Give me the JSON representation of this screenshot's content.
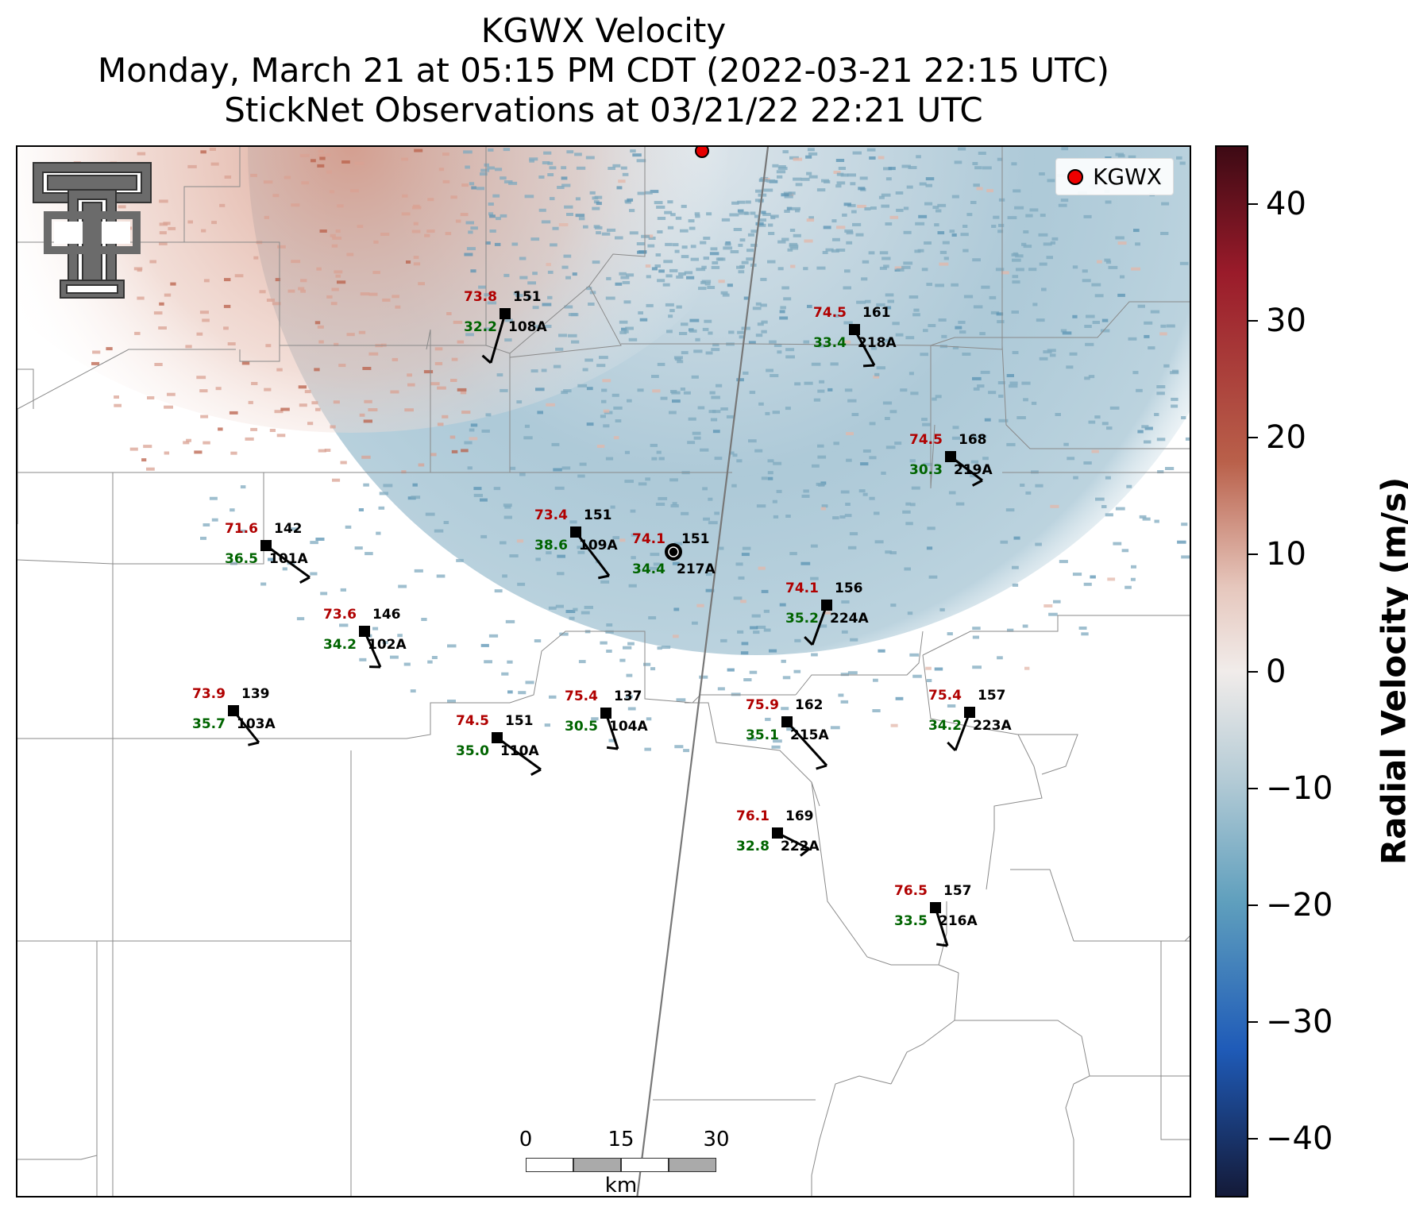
{
  "title": {
    "line1": "KGWX Velocity",
    "line2": "Monday, March 21 at 05:15 PM CDT (2022-03-21 22:15 UTC)",
    "line3": "StickNet Observations at 03/21/22 22:21 UTC"
  },
  "legend": {
    "label": "KGWX",
    "marker_color": "#e60000"
  },
  "radar_site": {
    "name": "KGWX"
  },
  "colorbar": {
    "title": "Radial Velocity (m/s)",
    "range": [
      -45,
      45
    ],
    "ticks": [
      "40",
      "30",
      "20",
      "10",
      "0",
      "−10",
      "−20",
      "−30",
      "−40"
    ],
    "tick_values": [
      40,
      30,
      20,
      10,
      0,
      -10,
      -20,
      -30,
      -40
    ],
    "colors": {
      "max": "#3d0a14",
      "high": "#b9604a",
      "mid": "#f1ecea",
      "low": "#5f9fbd",
      "deep": "#1f5bb8",
      "min": "#141a38"
    }
  },
  "scale_bar": {
    "ticks": [
      "0",
      "15",
      "30"
    ],
    "unit": "km"
  },
  "stations": [
    {
      "id": "108A",
      "temp": "73.8",
      "dew": "32.2",
      "pressure": "151"
    },
    {
      "id": "217A",
      "temp": "74.1",
      "dew": "34.4",
      "pressure": "151"
    },
    {
      "id": "218A",
      "temp": "74.5",
      "dew": "33.4",
      "pressure": "161"
    },
    {
      "id": "219A",
      "temp": "74.5",
      "dew": "30.3",
      "pressure": "168"
    },
    {
      "id": "101A",
      "temp": "71.6",
      "dew": "36.5",
      "pressure": "142"
    },
    {
      "id": "109A",
      "temp": "73.4",
      "dew": "38.6",
      "pressure": "151"
    },
    {
      "id": "102A",
      "temp": "73.6",
      "dew": "34.2",
      "pressure": "146"
    },
    {
      "id": "224A",
      "temp": "74.1",
      "dew": "35.2",
      "pressure": "156"
    },
    {
      "id": "103A",
      "temp": "73.9",
      "dew": "35.7",
      "pressure": "139"
    },
    {
      "id": "110A",
      "temp": "74.5",
      "dew": "35.0",
      "pressure": "151"
    },
    {
      "id": "104A",
      "temp": "75.4",
      "dew": "30.5",
      "pressure": "137"
    },
    {
      "id": "215A",
      "temp": "75.9",
      "dew": "35.1",
      "pressure": "162"
    },
    {
      "id": "223A",
      "temp": "75.4",
      "dew": "34.2",
      "pressure": "157"
    },
    {
      "id": "222A",
      "temp": "76.1",
      "dew": "32.8",
      "pressure": "169"
    },
    {
      "id": "216A",
      "temp": "76.5",
      "dew": "33.5",
      "pressure": "157"
    }
  ],
  "style": {
    "temp_color": "#b00000",
    "dew_color": "#006400",
    "id_color": "#000000"
  }
}
